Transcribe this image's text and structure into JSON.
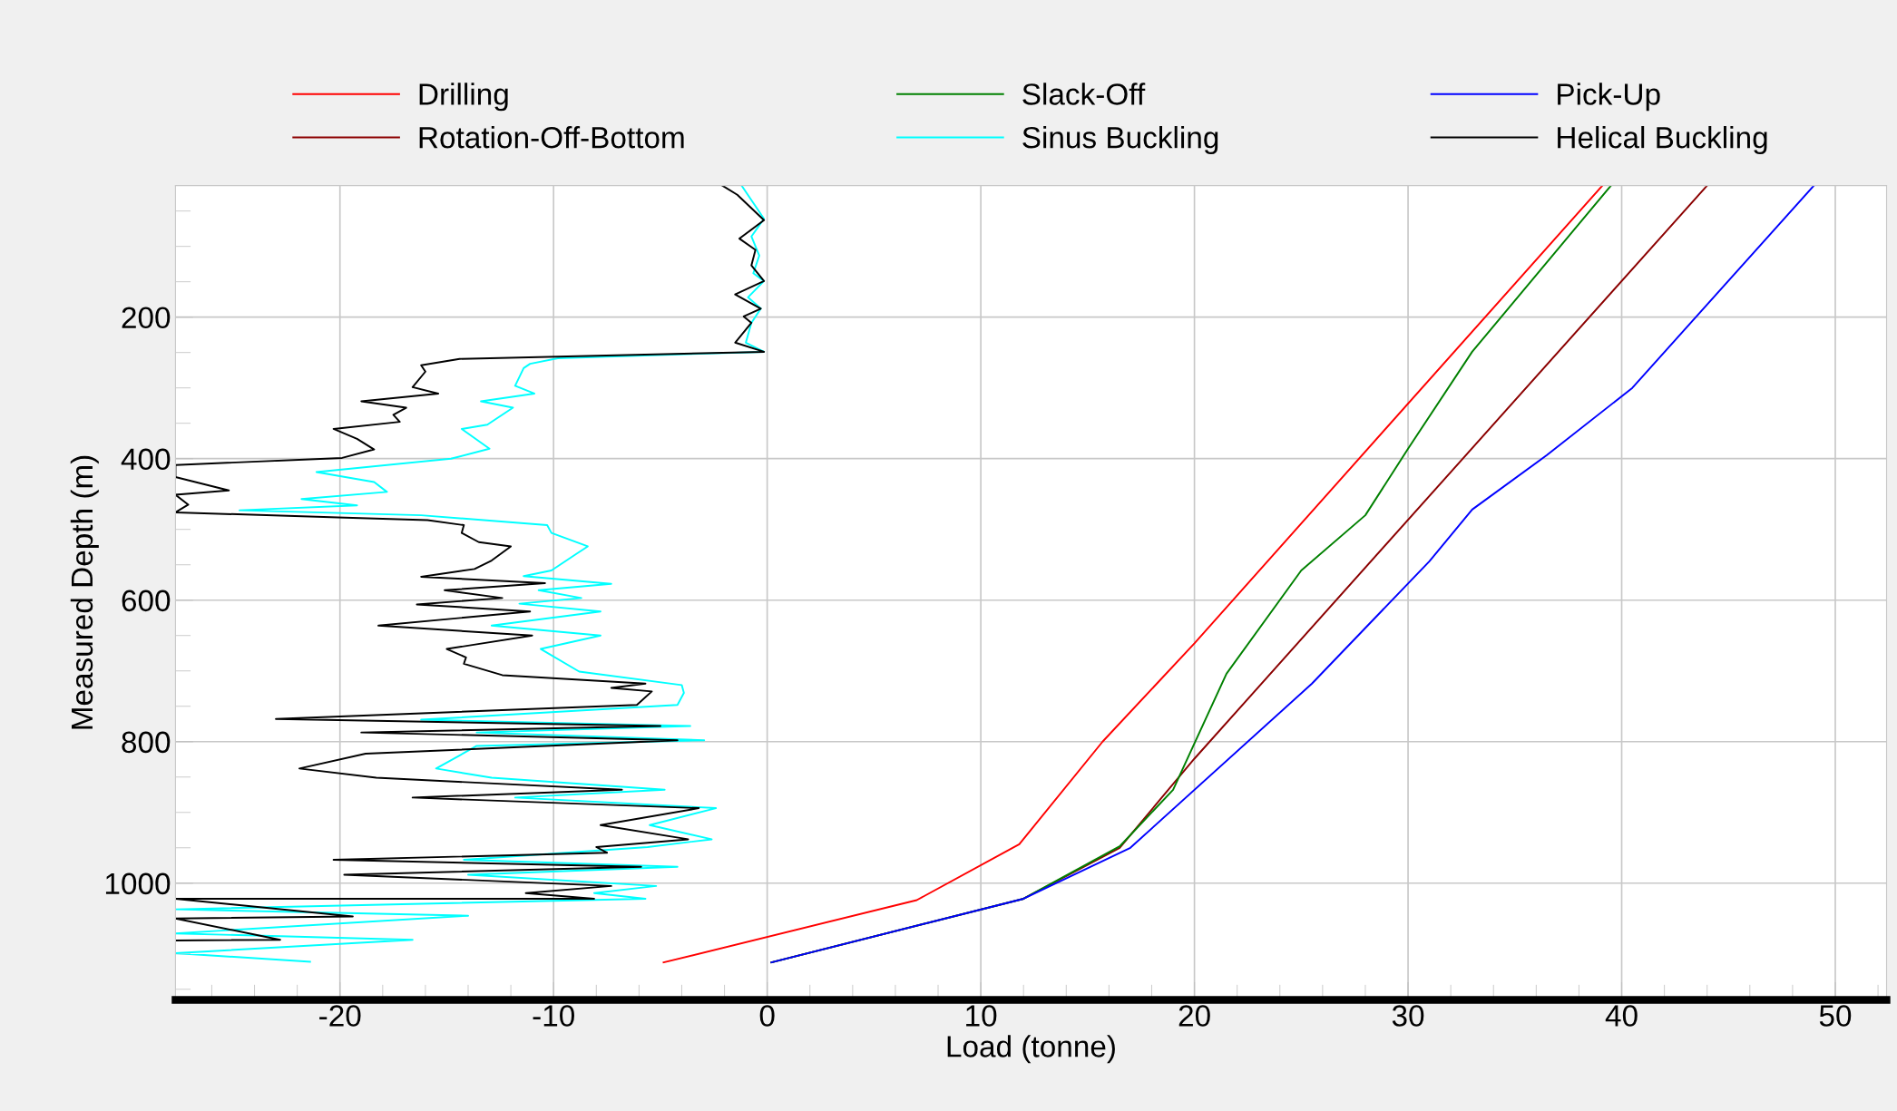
{
  "chart_data": {
    "type": "line",
    "xlabel": "Load (tonne)",
    "ylabel": "Measured Depth (m)",
    "xlim": [
      -27.7,
      52.4
    ],
    "xticks": [
      -20,
      -10,
      0,
      10,
      20,
      30,
      40,
      50
    ],
    "ylim": [
      1165,
      14
    ],
    "yticks": [
      200,
      400,
      600,
      800,
      1000
    ],
    "grid": true,
    "legend": "top",
    "marker": "none",
    "series": [
      {
        "name": "Drilling",
        "color": "#ff0000",
        "line_style": "solid",
        "x": [
          -4.85,
          7.0,
          11.8,
          15.7,
          20.0,
          39.1
        ],
        "values": [
          1112,
          1024,
          945,
          800,
          661,
          14
        ]
      },
      {
        "name": "Rotation-Off-Bottom",
        "color": "#8b0000",
        "line_style": "solid",
        "x": [
          0.2,
          12.0,
          16.5,
          20.0,
          44.0
        ],
        "values": [
          1112,
          1022,
          950,
          824,
          14
        ]
      },
      {
        "name": "Slack-Off",
        "color": "#008000",
        "line_style": "solid",
        "x": [
          0.2,
          12.0,
          16.5,
          19.0,
          21.5,
          25.0,
          28.0,
          30.0,
          33.0,
          39.5
        ],
        "values": [
          1112,
          1022,
          948,
          868,
          704,
          558,
          480,
          386,
          249,
          14
        ]
      },
      {
        "name": "Sinus Buckling",
        "color": "#00ffff",
        "line_style": "solid",
        "x": [
          -1.2,
          -0.15,
          -0.74,
          -0.37,
          -0.65,
          -0.15,
          -0.9,
          -0.3,
          -0.74,
          -1.0,
          -0.15,
          -9.8,
          -11.1,
          -11.4,
          -11.8,
          -10.9,
          -13.4,
          -11.9,
          -13.1,
          -14.3,
          -13.0,
          -14.8,
          -21.1,
          -18.4,
          -17.8,
          -21.8,
          -19.2,
          -24.7,
          -16.2,
          -10.3,
          -10.1,
          -8.4,
          -9.0,
          -10.1,
          -11.4,
          -7.3,
          -10.7,
          -8.7,
          -11.6,
          -7.8,
          -12.9,
          -7.8,
          -10.6,
          -8.8,
          -4.0,
          -3.9,
          -4.2,
          -16.2,
          -3.6,
          -13.6,
          -2.95,
          -13.6,
          -15.5,
          -12.9,
          -4.8,
          -11.8,
          -2.4,
          -5.5,
          -2.6,
          -5.6,
          -14.2,
          -4.2,
          -14.0,
          -5.2,
          -8.1,
          -5.7,
          -27.7,
          -14.0,
          -27.7,
          -16.6,
          -27.7,
          -21.4
        ],
        "values": [
          14,
          61,
          86,
          113,
          138,
          149,
          172,
          188,
          208,
          236,
          249,
          258,
          266,
          272,
          297,
          308,
          319,
          328,
          352,
          358,
          386,
          400,
          419,
          433,
          447,
          457,
          466,
          473,
          480,
          494,
          505,
          524,
          536,
          558,
          566,
          577,
          586,
          597,
          605,
          616,
          636,
          650,
          669,
          701,
          720,
          731,
          748,
          769,
          778,
          787,
          798,
          806,
          838,
          851,
          868,
          879,
          894,
          918,
          938,
          949,
          967,
          977,
          988,
          1004,
          1014,
          1022,
          1037,
          1046,
          1071,
          1080,
          1099,
          1111
        ]
      },
      {
        "name": "Pick-Up",
        "color": "#0000ff",
        "line_style": "solid",
        "x": [
          0.2,
          12.0,
          17.0,
          25.5,
          31.0,
          33.0,
          36.5,
          40.5,
          49.0
        ],
        "values": [
          1112,
          1022,
          950,
          718,
          545,
          472,
          395,
          300,
          14
        ]
      },
      {
        "name": "Helical Buckling",
        "color": "#000000",
        "line_style": "solid",
        "x": [
          -2.1,
          -1.4,
          -0.15,
          -1.3,
          -0.55,
          -0.74,
          -0.15,
          -1.5,
          -0.3,
          -1.1,
          -0.74,
          -1.5,
          -0.15,
          -14.4,
          -16.2,
          -16.0,
          -16.6,
          -15.4,
          -19.0,
          -16.9,
          -17.5,
          -17.2,
          -20.3,
          -19.2,
          -18.4,
          -19.9,
          -27.7,
          -27.7,
          -25.2,
          -27.7,
          -27.1,
          -27.7,
          -20.1,
          -15.9,
          -14.2,
          -14.3,
          -13.5,
          -12.0,
          -12.9,
          -13.7,
          -16.2,
          -10.4,
          -15.1,
          -12.4,
          -16.4,
          -11.1,
          -18.2,
          -11.0,
          -15.0,
          -14.1,
          -14.2,
          -12.4,
          -5.7,
          -7.3,
          -5.4,
          -6.1,
          -23.0,
          -5.0,
          -19.0,
          -4.2,
          -18.8,
          -21.9,
          -18.3,
          -6.8,
          -16.6,
          -3.2,
          -7.8,
          -3.7,
          -8.0,
          -7.5,
          -20.3,
          -5.9,
          -19.8,
          -7.3,
          -11.3,
          -8.1,
          -27.7,
          -19.4,
          -27.7,
          -22.8,
          -27.7
        ],
        "values": [
          14,
          27,
          63,
          89,
          105,
          127,
          149,
          168,
          188,
          199,
          208,
          236,
          249,
          259,
          268,
          277,
          299,
          308,
          319,
          328,
          338,
          348,
          358,
          372,
          387,
          399,
          409,
          426,
          445,
          451,
          465,
          476,
          483,
          487,
          494,
          505,
          518,
          524,
          544,
          556,
          567,
          576,
          586,
          597,
          606,
          616,
          636,
          650,
          669,
          681,
          690,
          706,
          718,
          724,
          729,
          748,
          768,
          778,
          787,
          798,
          817,
          838,
          851,
          868,
          879,
          894,
          918,
          938,
          949,
          957,
          967,
          977,
          988,
          1004,
          1014,
          1022,
          1022,
          1047,
          1050,
          1080,
          1081
        ]
      }
    ]
  }
}
